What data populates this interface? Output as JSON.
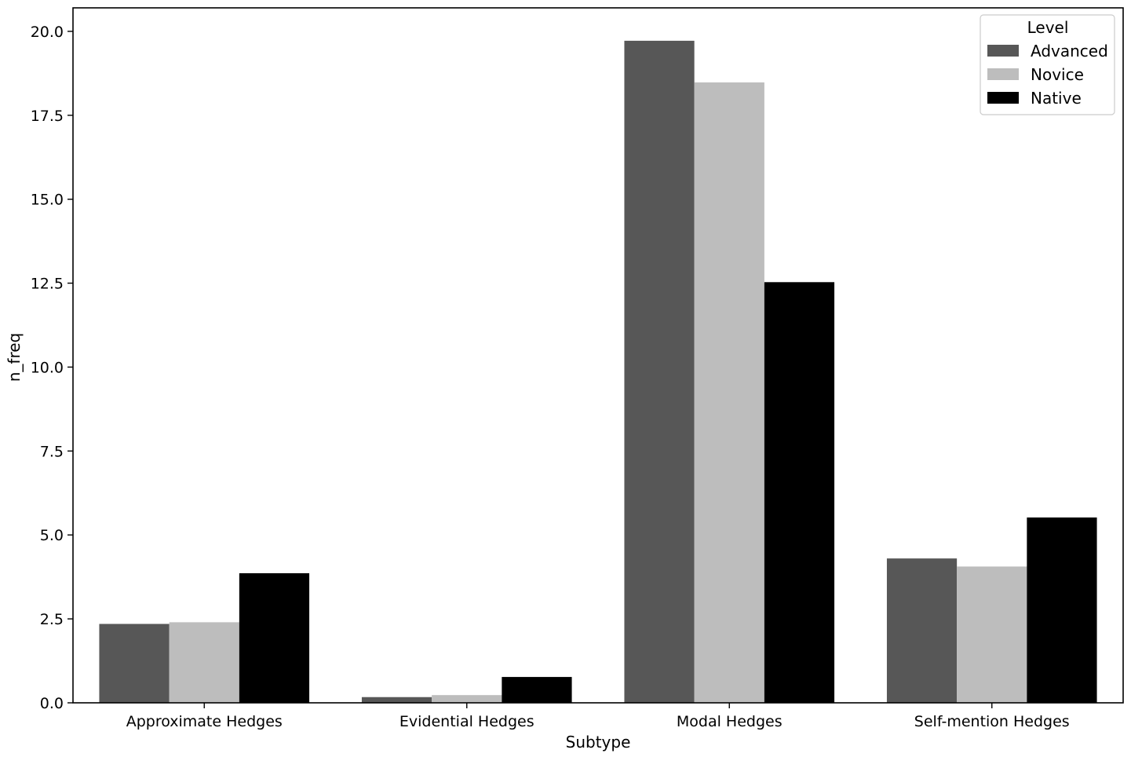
{
  "chart_data": {
    "type": "bar",
    "title": "",
    "xlabel": "Subtype",
    "ylabel": "n_freq",
    "categories": [
      "Approximate Hedges",
      "Evidential Hedges",
      "Modal Hedges",
      "Self-mention Hedges"
    ],
    "series": [
      {
        "name": "Advanced",
        "color": "#575757",
        "values": [
          2.35,
          0.17,
          19.72,
          4.3
        ]
      },
      {
        "name": "Novice",
        "color": "#bdbdbd",
        "values": [
          2.4,
          0.23,
          18.48,
          4.06
        ]
      },
      {
        "name": "Native",
        "color": "#000000",
        "values": [
          3.86,
          0.77,
          12.53,
          5.52
        ]
      }
    ],
    "ylim": [
      0,
      20.7
    ],
    "yticks": [
      "0.0",
      "2.5",
      "5.0",
      "7.5",
      "10.0",
      "12.5",
      "15.0",
      "17.5",
      "20.0"
    ],
    "grid": false,
    "legend": {
      "title": "Level",
      "position": "top-right"
    }
  }
}
